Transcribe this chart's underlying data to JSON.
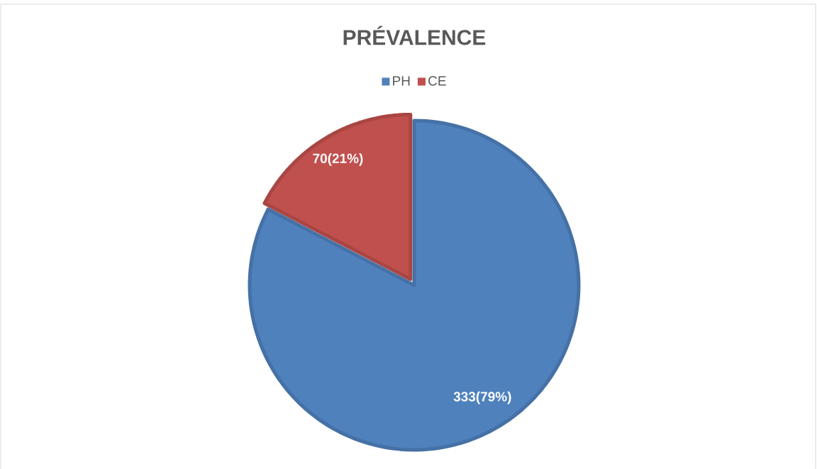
{
  "chart_data": {
    "type": "pie",
    "title": "PRÉVALENCE",
    "categories": [
      "PH",
      "CE"
    ],
    "values": [
      333,
      70
    ],
    "colors": [
      "#4f81bd",
      "#c0504d"
    ],
    "value_labels": [
      "333(79%)",
      "70(21%)"
    ],
    "legend": "top"
  }
}
